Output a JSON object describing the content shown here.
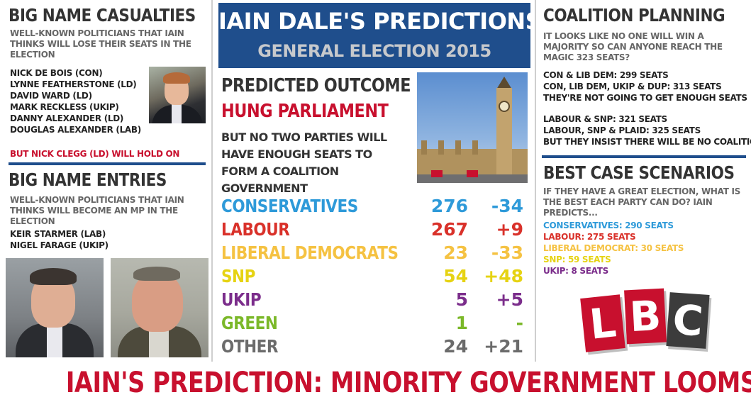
{
  "casualties": {
    "title": "Big Name Casualties",
    "subtitle": "Well-known politicians that Iain thinks will lose their seats in the election",
    "names": [
      "Nick de Bois (Con)",
      "Lynne Featherstone (LD)",
      "David Ward (LD)",
      "Mark Reckless (UKIP)",
      "Danny Alexander (LD)",
      "Douglas Alexander (Lab)"
    ],
    "footer": "But Nick Clegg (LD) will hold on"
  },
  "entries": {
    "title": "Big Name Entries",
    "subtitle": "Well-known politicians that Iain thinks will become an MP in the election",
    "names": [
      "Keir Starmer (Lab)",
      "Nigel Farage (UKIP)"
    ]
  },
  "banner": {
    "title": "Iain Dale's Predictions",
    "subtitle": "General Election 2015"
  },
  "outcome": {
    "label": "Predicted Outcome",
    "value": "Hung Parliament",
    "description": "But no two parties will have enough seats to form a coalition government"
  },
  "colors": {
    "navy": "#1f4e8c",
    "red": "#c8102e",
    "conservatives": "#2e9ad9",
    "labour": "#d9312a",
    "libdem": "#f5c242",
    "snp": "#e6d312",
    "ukip": "#7b2d8b",
    "green": "#7bb829",
    "other": "#6b6b6b"
  },
  "results": [
    {
      "party": "Conservatives",
      "seats": "276",
      "change": "-34",
      "color": "#2e9ad9"
    },
    {
      "party": "Labour",
      "seats": "267",
      "change": "+9",
      "color": "#d9312a"
    },
    {
      "party": "Liberal Democrats",
      "seats": "23",
      "change": "-33",
      "color": "#f5c242"
    },
    {
      "party": "SNP",
      "seats": "54",
      "change": "+48",
      "color": "#e6d312"
    },
    {
      "party": "UKIP",
      "seats": "5",
      "change": "+5",
      "color": "#7b2d8b"
    },
    {
      "party": "Green",
      "seats": "1",
      "change": "-",
      "color": "#7bb829"
    },
    {
      "party": "Other",
      "seats": "24",
      "change": "+21",
      "color": "#6b6b6b"
    }
  ],
  "coalition": {
    "title": "Coalition Planning",
    "subtitle": "It looks like no one will win a majority so can anyone reach the magic 323 seats?",
    "block1": [
      "Con & Lib Dem:  299 seats",
      "Con, Lib Dem, UKIP & DUP: 313 seats"
    ],
    "block1_note": "They're not going to get enough seats",
    "block2": [
      "Labour & SNP: 321 seats",
      "Labour, SNP & Plaid: 325 seats"
    ],
    "block2_note": "But they insist there will be no coalition"
  },
  "best_case": {
    "title": "Best Case Scenarios",
    "subtitle": "If they have a great election, what is the best each party can do? Iain predicts...",
    "items": [
      {
        "text": "Conservatives: 290 seats",
        "color": "#2e9ad9"
      },
      {
        "text": "Labour: 275 seats",
        "color": "#d9312a"
      },
      {
        "text": "Liberal Democrat: 30 seats",
        "color": "#f5c242"
      },
      {
        "text": "SNP: 59 seats",
        "color": "#e6d312"
      },
      {
        "text": "UKIP: 8 seats",
        "color": "#7b2d8b"
      }
    ]
  },
  "logo": {
    "letters": [
      "L",
      "B",
      "C"
    ]
  },
  "footer": {
    "text": "Iain's Prediction: Minority Government Looms"
  }
}
